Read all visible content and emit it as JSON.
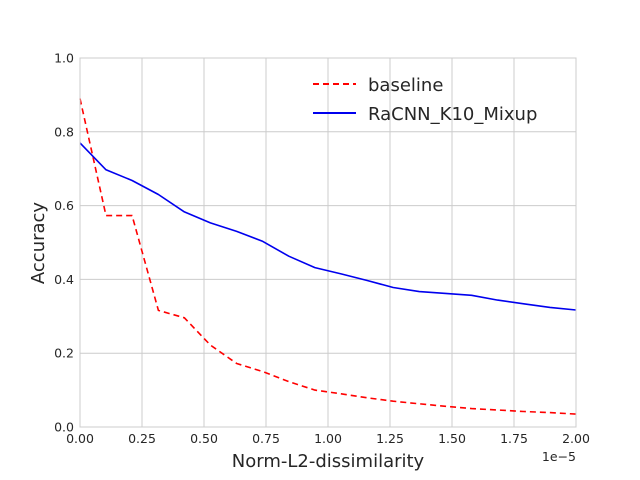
{
  "chart_data": {
    "type": "line",
    "xlabel": "Norm-L2-dissimilarity",
    "ylabel": "Accuracy",
    "x_offset_label": "1e−5",
    "xlim": [
      0,
      2.0
    ],
    "ylim": [
      0,
      1.0
    ],
    "xticks": [
      "0.00",
      "0.25",
      "0.50",
      "0.75",
      "1.00",
      "1.25",
      "1.50",
      "1.75",
      "2.00"
    ],
    "xtick_values": [
      0,
      0.25,
      0.5,
      0.75,
      1.0,
      1.25,
      1.5,
      1.75,
      2.0
    ],
    "yticks": [
      "0.0",
      "0.2",
      "0.4",
      "0.6",
      "0.8",
      "1.0"
    ],
    "ytick_values": [
      0,
      0.2,
      0.4,
      0.6,
      0.8,
      1.0
    ],
    "grid": true,
    "legend_position": "top-right",
    "series": [
      {
        "name": "baseline",
        "color": "#ff0000",
        "style": "dashed",
        "x": [
          0,
          0.105,
          0.21,
          0.316,
          0.421,
          0.526,
          0.632,
          0.737,
          0.842,
          0.947,
          1.053,
          1.158,
          1.263,
          1.368,
          1.474,
          1.579,
          1.684,
          1.789,
          1.895,
          2.0
        ],
        "y": [
          0.89,
          0.573,
          0.573,
          0.316,
          0.296,
          0.222,
          0.172,
          0.15,
          0.123,
          0.1,
          0.09,
          0.079,
          0.07,
          0.063,
          0.056,
          0.05,
          0.046,
          0.042,
          0.039,
          0.035
        ]
      },
      {
        "name": "RaCNN_K10_Mixup",
        "color": "#0000ee",
        "style": "solid",
        "x": [
          0,
          0.105,
          0.21,
          0.316,
          0.421,
          0.526,
          0.632,
          0.737,
          0.842,
          0.947,
          1.053,
          1.158,
          1.263,
          1.368,
          1.474,
          1.579,
          1.684,
          1.789,
          1.895,
          2.0
        ],
        "y": [
          0.77,
          0.697,
          0.668,
          0.63,
          0.583,
          0.553,
          0.53,
          0.503,
          0.463,
          0.432,
          0.415,
          0.397,
          0.378,
          0.367,
          0.362,
          0.357,
          0.344,
          0.334,
          0.324,
          0.317
        ]
      }
    ]
  }
}
